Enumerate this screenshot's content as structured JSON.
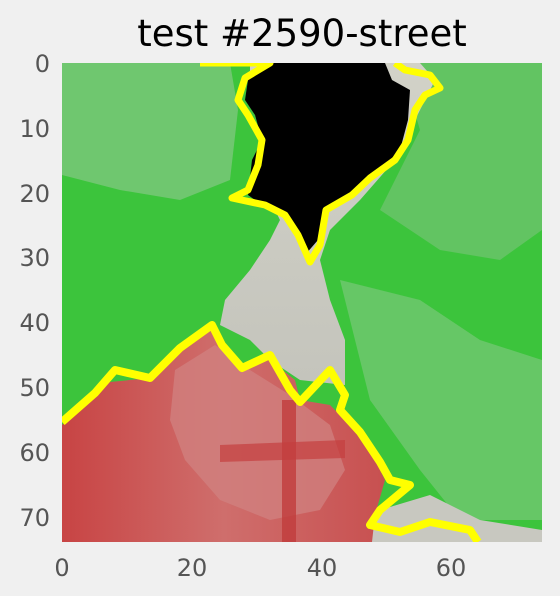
{
  "figure": {
    "title": "test #2590-street"
  },
  "chart_data": {
    "type": "heatmap",
    "title": "test #2590-street",
    "xlabel": "",
    "ylabel": "",
    "xlim": [
      0,
      74
    ],
    "ylim": [
      74,
      0
    ],
    "x_ticks": [
      "0",
      "20",
      "40",
      "60"
    ],
    "y_ticks": [
      "0",
      "10",
      "20",
      "30",
      "40",
      "50",
      "60",
      "70"
    ],
    "grid": false,
    "colors": {
      "background": "#f0f0f0",
      "vegetation": "#3cc43c",
      "vegetation_light": "#74c874",
      "road": "#c8c8c0",
      "building": "#c84646",
      "building_light": "#cf7a78",
      "boundary": "#ffff00",
      "void": "#000000"
    }
  }
}
